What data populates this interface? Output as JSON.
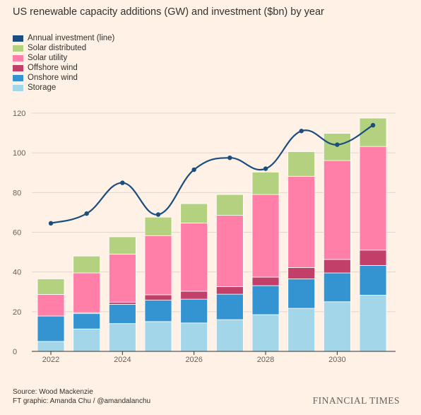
{
  "title": "US renewable capacity additions (GW) and investment ($bn) by year",
  "legend": [
    {
      "label": "Annual investment (line)",
      "color": "#1a4e80"
    },
    {
      "label": "Solar distributed",
      "color": "#b3d17f"
    },
    {
      "label": "Solar utility",
      "color": "#ff7fa8"
    },
    {
      "label": "Offshore wind",
      "color": "#c13f69"
    },
    {
      "label": "Onshore wind",
      "color": "#3394d1"
    },
    {
      "label": "Storage",
      "color": "#a3d6e8"
    }
  ],
  "chart_data": {
    "type": "bar",
    "stacked": true,
    "categories": [
      "2022",
      "2023",
      "2024",
      "2025",
      "2026",
      "2027",
      "2028",
      "2029",
      "2030",
      "2031"
    ],
    "x_tick_labels": [
      "2022",
      "2024",
      "2026",
      "2028",
      "2030"
    ],
    "ylim": [
      0,
      120
    ],
    "y_ticks": [
      0,
      20,
      40,
      60,
      80,
      100,
      120
    ],
    "grid": true,
    "series": [
      {
        "name": "Storage",
        "color": "#a3d6e8",
        "values": [
          5,
          11.3,
          14,
          15,
          14.3,
          16,
          18.5,
          21.7,
          25,
          28.3
        ]
      },
      {
        "name": "Onshore wind",
        "color": "#3394d1",
        "values": [
          12.8,
          7.7,
          9.7,
          10.8,
          12,
          12.8,
          14.6,
          14.8,
          14.5,
          15
        ]
      },
      {
        "name": "Offshore wind",
        "color": "#c13f69",
        "values": [
          0,
          0.5,
          1,
          2.7,
          4,
          3.8,
          4.3,
          5.7,
          6.8,
          7.7
        ]
      },
      {
        "name": "Solar utility",
        "color": "#ff7fa8",
        "values": [
          10.9,
          20,
          24.3,
          29.8,
          34.3,
          35.9,
          41.6,
          46,
          49.8,
          52.2
        ]
      },
      {
        "name": "Solar distributed",
        "color": "#b3d17f",
        "values": [
          7.8,
          8.5,
          8.7,
          9.3,
          9.8,
          10.5,
          11.3,
          12.4,
          13.7,
          14.3
        ]
      },
      {
        "name": "Annual investment (line)",
        "type": "line",
        "color": "#1a4e80",
        "values": [
          64.5,
          69.4,
          84.9,
          68.9,
          91.5,
          97.5,
          92,
          111,
          104.1,
          113.9
        ]
      }
    ]
  },
  "footer": {
    "source": "Source: Wood Mackenzie",
    "credit": "FT graphic: Amanda Chu / @amandalanchu",
    "brand": "FINANCIAL TIMES"
  }
}
